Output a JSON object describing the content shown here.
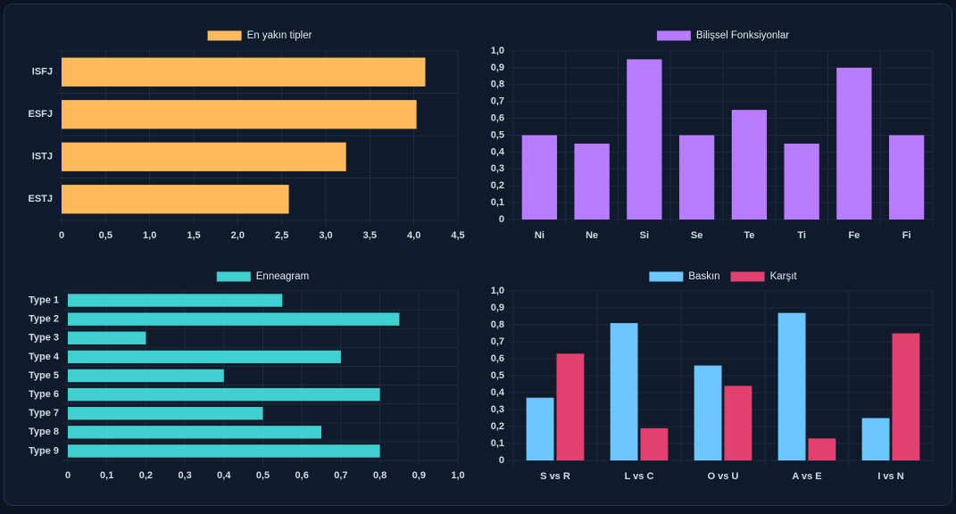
{
  "chart_data": [
    {
      "type": "bar",
      "orientation": "horizontal",
      "categories": [
        "ISFJ",
        "ESFJ",
        "ISTJ",
        "ESTJ"
      ],
      "series": [
        {
          "name": "En yakın tipler",
          "color": "#ffbb5c",
          "values": [
            4.13,
            4.03,
            3.23,
            2.58
          ]
        }
      ],
      "xlim": [
        0,
        4.5
      ],
      "xticks": [
        0,
        {
          "value": 0.5,
          "label": "0,5"
        },
        {
          "value": 1,
          "label": "1,0"
        },
        {
          "value": 1.5,
          "label": "1,5"
        },
        {
          "value": 2,
          "label": "2,0"
        },
        {
          "value": 2.5,
          "label": "2,5"
        },
        {
          "value": 3,
          "label": "3,0"
        },
        {
          "value": 3.5,
          "label": "3,5"
        },
        {
          "value": 4,
          "label": "4,0"
        },
        {
          "value": 4.5,
          "label": "4,5"
        }
      ],
      "grid": true
    },
    {
      "type": "bar",
      "orientation": "vertical",
      "categories": [
        "Ni",
        "Ne",
        "Si",
        "Se",
        "Te",
        "Ti",
        "Fe",
        "Fi"
      ],
      "series": [
        {
          "name": "Bilişsel Fonksiyonlar",
          "color": "#b77cff",
          "values": [
            0.5,
            0.45,
            0.95,
            0.5,
            0.65,
            0.45,
            0.9,
            0.5
          ]
        }
      ],
      "ylim": [
        0,
        1
      ],
      "yticks": [
        0,
        {
          "value": 0.1,
          "label": "0,1"
        },
        {
          "value": 0.2,
          "label": "0,2"
        },
        {
          "value": 0.3,
          "label": "0,3"
        },
        {
          "value": 0.4,
          "label": "0,4"
        },
        {
          "value": 0.5,
          "label": "0,5"
        },
        {
          "value": 0.6,
          "label": "0,6"
        },
        {
          "value": 0.7,
          "label": "0,7"
        },
        {
          "value": 0.8,
          "label": "0,8"
        },
        {
          "value": 0.9,
          "label": "0,9"
        },
        {
          "value": 1,
          "label": "1,0"
        }
      ],
      "grid": true
    },
    {
      "type": "bar",
      "orientation": "horizontal",
      "categories": [
        "Type 1",
        "Type 2",
        "Type 3",
        "Type 4",
        "Type 5",
        "Type 6",
        "Type 7",
        "Type 8",
        "Type 9"
      ],
      "series": [
        {
          "name": "Enneagram",
          "color": "#40d0cf",
          "values": [
            0.55,
            0.85,
            0.2,
            0.7,
            0.4,
            0.8,
            0.5,
            0.65,
            0.8
          ]
        }
      ],
      "xlim": [
        0,
        1
      ],
      "xticks": [
        0,
        {
          "value": 0.1,
          "label": "0,1"
        },
        {
          "value": 0.2,
          "label": "0,2"
        },
        {
          "value": 0.3,
          "label": "0,3"
        },
        {
          "value": 0.4,
          "label": "0,4"
        },
        {
          "value": 0.5,
          "label": "0,5"
        },
        {
          "value": 0.6,
          "label": "0,6"
        },
        {
          "value": 0.7,
          "label": "0,7"
        },
        {
          "value": 0.8,
          "label": "0,8"
        },
        {
          "value": 0.9,
          "label": "0,9"
        },
        {
          "value": 1,
          "label": "1,0"
        }
      ],
      "grid": true
    },
    {
      "type": "bar",
      "orientation": "vertical",
      "categories": [
        "S vs R",
        "L vs C",
        "O vs U",
        "A vs E",
        "I vs N"
      ],
      "series": [
        {
          "name": "Baskın",
          "color": "#6ec6ff",
          "values": [
            0.37,
            0.81,
            0.56,
            0.87,
            0.25
          ]
        },
        {
          "name": "Karşıt",
          "color": "#e2406f",
          "values": [
            0.63,
            0.19,
            0.44,
            0.13,
            0.75
          ]
        }
      ],
      "ylim": [
        0,
        1
      ],
      "yticks": [
        0,
        {
          "value": 0.1,
          "label": "0,1"
        },
        {
          "value": 0.2,
          "label": "0,2"
        },
        {
          "value": 0.3,
          "label": "0,3"
        },
        {
          "value": 0.4,
          "label": "0,4"
        },
        {
          "value": 0.5,
          "label": "0,5"
        },
        {
          "value": 0.6,
          "label": "0,6"
        },
        {
          "value": 0.7,
          "label": "0,7"
        },
        {
          "value": 0.8,
          "label": "0,8"
        },
        {
          "value": 0.9,
          "label": "0,9"
        },
        {
          "value": 1,
          "label": "1,0"
        }
      ],
      "grid": true
    }
  ]
}
